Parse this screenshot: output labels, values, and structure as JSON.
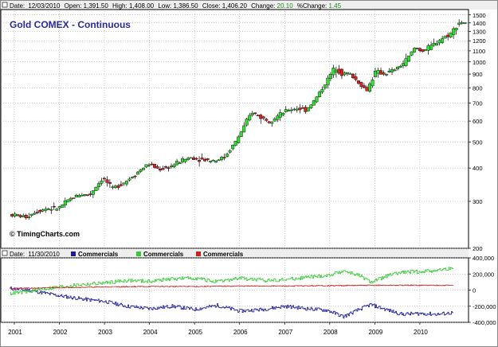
{
  "info_bar": {
    "date_label": "Date:",
    "date": "12/03/2010",
    "open_label": "Open:",
    "open": "1,391.50",
    "high_label": "High:",
    "high": "1,408.00",
    "low_label": "Low:",
    "low": "1,386.50",
    "close_label": "Close:",
    "close": "1,406.20",
    "change_label": "Change:",
    "change": "20.10",
    "pct_label": "%Change:",
    "pct": "1.45"
  },
  "title": "Gold COMEX - Continuous",
  "copyright": "© TimingCharts.com",
  "lower_bar": {
    "date_label": "Date:",
    "date": "11/30/2010",
    "legend": [
      "Commercials",
      "Commercials",
      "Commercials"
    ]
  },
  "colors": {
    "up_candle": "#33dd33",
    "down_candle": "#dd2222",
    "wick": "#000000",
    "series1": "#1c1c9a",
    "series2": "#33cc33",
    "series3": "#cc2222",
    "title": "#2a2aa0",
    "change_value": "#228822",
    "grid": "#000000"
  },
  "chart_data": [
    {
      "type": "candlestick",
      "title": "Gold COMEX - Continuous",
      "scale": "log",
      "ylim": [
        200,
        1550
      ],
      "y_ticks": [
        200,
        300,
        400,
        500,
        600,
        700,
        800,
        900,
        1000,
        1100,
        1200,
        1300,
        1400,
        1500
      ],
      "x_labels": [
        "2001",
        "2002",
        "2003",
        "2004",
        "2005",
        "2006",
        "2007",
        "2008",
        "2009",
        "2010"
      ],
      "grid": "on (dotted vertical + horizontal)",
      "anchor_points": [
        [
          2000.92,
          268
        ],
        [
          2001.3,
          262
        ],
        [
          2001.5,
          275
        ],
        [
          2001.75,
          282
        ],
        [
          2002.0,
          282
        ],
        [
          2002.25,
          305
        ],
        [
          2002.45,
          318
        ],
        [
          2002.7,
          318
        ],
        [
          2003.0,
          368
        ],
        [
          2003.2,
          335
        ],
        [
          2003.5,
          356
        ],
        [
          2003.8,
          390
        ],
        [
          2004.0,
          415
        ],
        [
          2004.25,
          395
        ],
        [
          2004.5,
          405
        ],
        [
          2004.75,
          428
        ],
        [
          2004.95,
          438
        ],
        [
          2005.2,
          430
        ],
        [
          2005.5,
          428
        ],
        [
          2005.7,
          440
        ],
        [
          2005.95,
          505
        ],
        [
          2006.1,
          560
        ],
        [
          2006.3,
          650
        ],
        [
          2006.5,
          620
        ],
        [
          2006.7,
          600
        ],
        [
          2006.9,
          630
        ],
        [
          2007.1,
          660
        ],
        [
          2007.3,
          670
        ],
        [
          2007.5,
          660
        ],
        [
          2007.7,
          720
        ],
        [
          2007.95,
          840
        ],
        [
          2008.15,
          960
        ],
        [
          2008.3,
          900
        ],
        [
          2008.45,
          910
        ],
        [
          2008.6,
          860
        ],
        [
          2008.85,
          780
        ],
        [
          2009.05,
          920
        ],
        [
          2009.25,
          900
        ],
        [
          2009.5,
          940
        ],
        [
          2009.7,
          1000
        ],
        [
          2009.92,
          1130
        ],
        [
          2010.1,
          1100
        ],
        [
          2010.3,
          1150
        ],
        [
          2010.5,
          1220
        ],
        [
          2010.7,
          1270
        ],
        [
          2010.9,
          1406
        ]
      ],
      "last_bar": {
        "open": 1391.5,
        "high": 1408.0,
        "low": 1386.5,
        "close": 1406.2
      }
    },
    {
      "type": "line",
      "ylim": [
        -400000,
        400000
      ],
      "y_ticks": [
        -400000,
        -200000,
        0,
        200000,
        400000
      ],
      "y_tick_labels": [
        "-400,000",
        "-200,000",
        "0",
        "200,000",
        "400,000"
      ],
      "series": [
        {
          "name": "Commercials",
          "points": [
            [
              2000.9,
              20000
            ],
            [
              2001.3,
              0
            ],
            [
              2001.7,
              -40000
            ],
            [
              2002.0,
              -70000
            ],
            [
              2002.5,
              -110000
            ],
            [
              2003.0,
              -140000
            ],
            [
              2003.5,
              -200000
            ],
            [
              2004.0,
              -230000
            ],
            [
              2004.5,
              -200000
            ],
            [
              2005.0,
              -240000
            ],
            [
              2005.5,
              -190000
            ],
            [
              2006.0,
              -260000
            ],
            [
              2006.5,
              -240000
            ],
            [
              2007.0,
              -200000
            ],
            [
              2007.5,
              -230000
            ],
            [
              2007.95,
              -250000
            ],
            [
              2008.3,
              -330000
            ],
            [
              2008.65,
              -240000
            ],
            [
              2008.9,
              -180000
            ],
            [
              2009.3,
              -250000
            ],
            [
              2009.6,
              -300000
            ],
            [
              2010.0,
              -290000
            ],
            [
              2010.4,
              -300000
            ],
            [
              2010.75,
              -280000
            ]
          ]
        },
        {
          "name": "Commercials",
          "points": [
            [
              2000.9,
              -40000
            ],
            [
              2001.3,
              -20000
            ],
            [
              2001.7,
              20000
            ],
            [
              2002.0,
              40000
            ],
            [
              2002.5,
              70000
            ],
            [
              2003.0,
              90000
            ],
            [
              2003.5,
              120000
            ],
            [
              2004.0,
              110000
            ],
            [
              2004.5,
              140000
            ],
            [
              2005.0,
              150000
            ],
            [
              2005.5,
              100000
            ],
            [
              2006.0,
              150000
            ],
            [
              2006.5,
              120000
            ],
            [
              2007.0,
              130000
            ],
            [
              2007.5,
              160000
            ],
            [
              2007.95,
              180000
            ],
            [
              2008.3,
              240000
            ],
            [
              2008.65,
              180000
            ],
            [
              2008.9,
              100000
            ],
            [
              2009.3,
              180000
            ],
            [
              2009.6,
              220000
            ],
            [
              2010.0,
              230000
            ],
            [
              2010.4,
              250000
            ],
            [
              2010.75,
              270000
            ]
          ]
        },
        {
          "name": "Commercials",
          "points": [
            [
              2000.9,
              20000
            ],
            [
              2002.0,
              30000
            ],
            [
              2003.0,
              40000
            ],
            [
              2004.0,
              45000
            ],
            [
              2005.0,
              45000
            ],
            [
              2006.0,
              50000
            ],
            [
              2007.0,
              50000
            ],
            [
              2008.0,
              55000
            ],
            [
              2009.0,
              60000
            ],
            [
              2010.0,
              60000
            ],
            [
              2010.75,
              60000
            ]
          ]
        }
      ]
    }
  ]
}
